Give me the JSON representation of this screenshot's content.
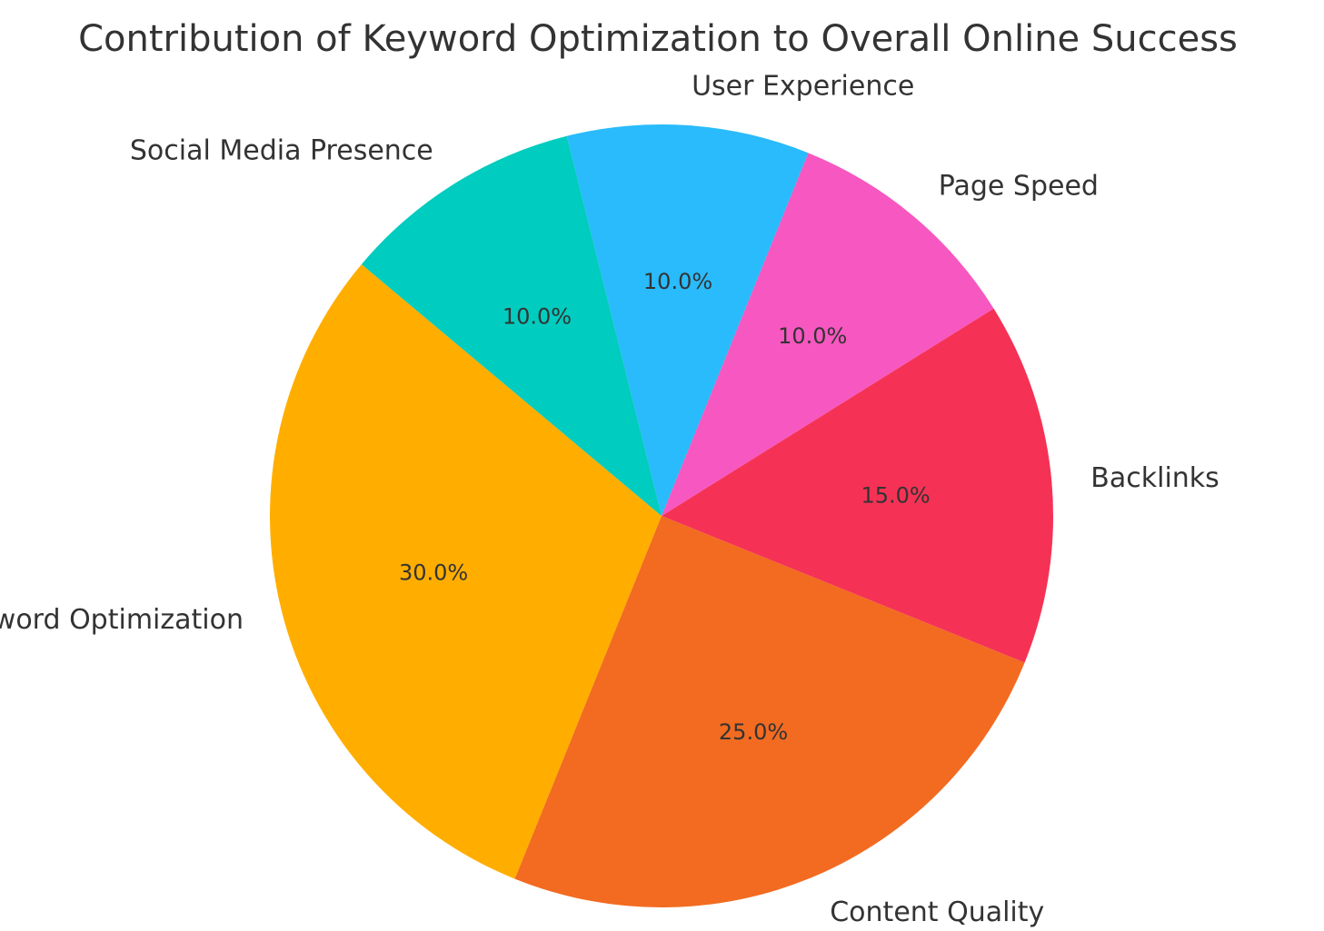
{
  "chart_data": {
    "type": "pie",
    "title": "Contribution of Keyword Optimization to Overall Online Success",
    "start_angle_deg": 140,
    "direction": "counterclockwise",
    "slices": [
      {
        "label": "Keyword Optimization",
        "value": 30.0,
        "pct_text": "30.0%",
        "color": "#FFAE00"
      },
      {
        "label": "Content Quality",
        "value": 25.0,
        "pct_text": "25.0%",
        "color": "#F26B21"
      },
      {
        "label": "Backlinks",
        "value": 15.0,
        "pct_text": "15.0%",
        "color": "#F53255"
      },
      {
        "label": "Page Speed",
        "value": 10.0,
        "pct_text": "10.0%",
        "color": "#F757C0"
      },
      {
        "label": "User Experience",
        "value": 10.0,
        "pct_text": "10.0%",
        "color": "#29BBFB"
      },
      {
        "label": "Social Media Presence",
        "value": 10.0,
        "pct_text": "10.0%",
        "color": "#00CCBF"
      }
    ]
  }
}
